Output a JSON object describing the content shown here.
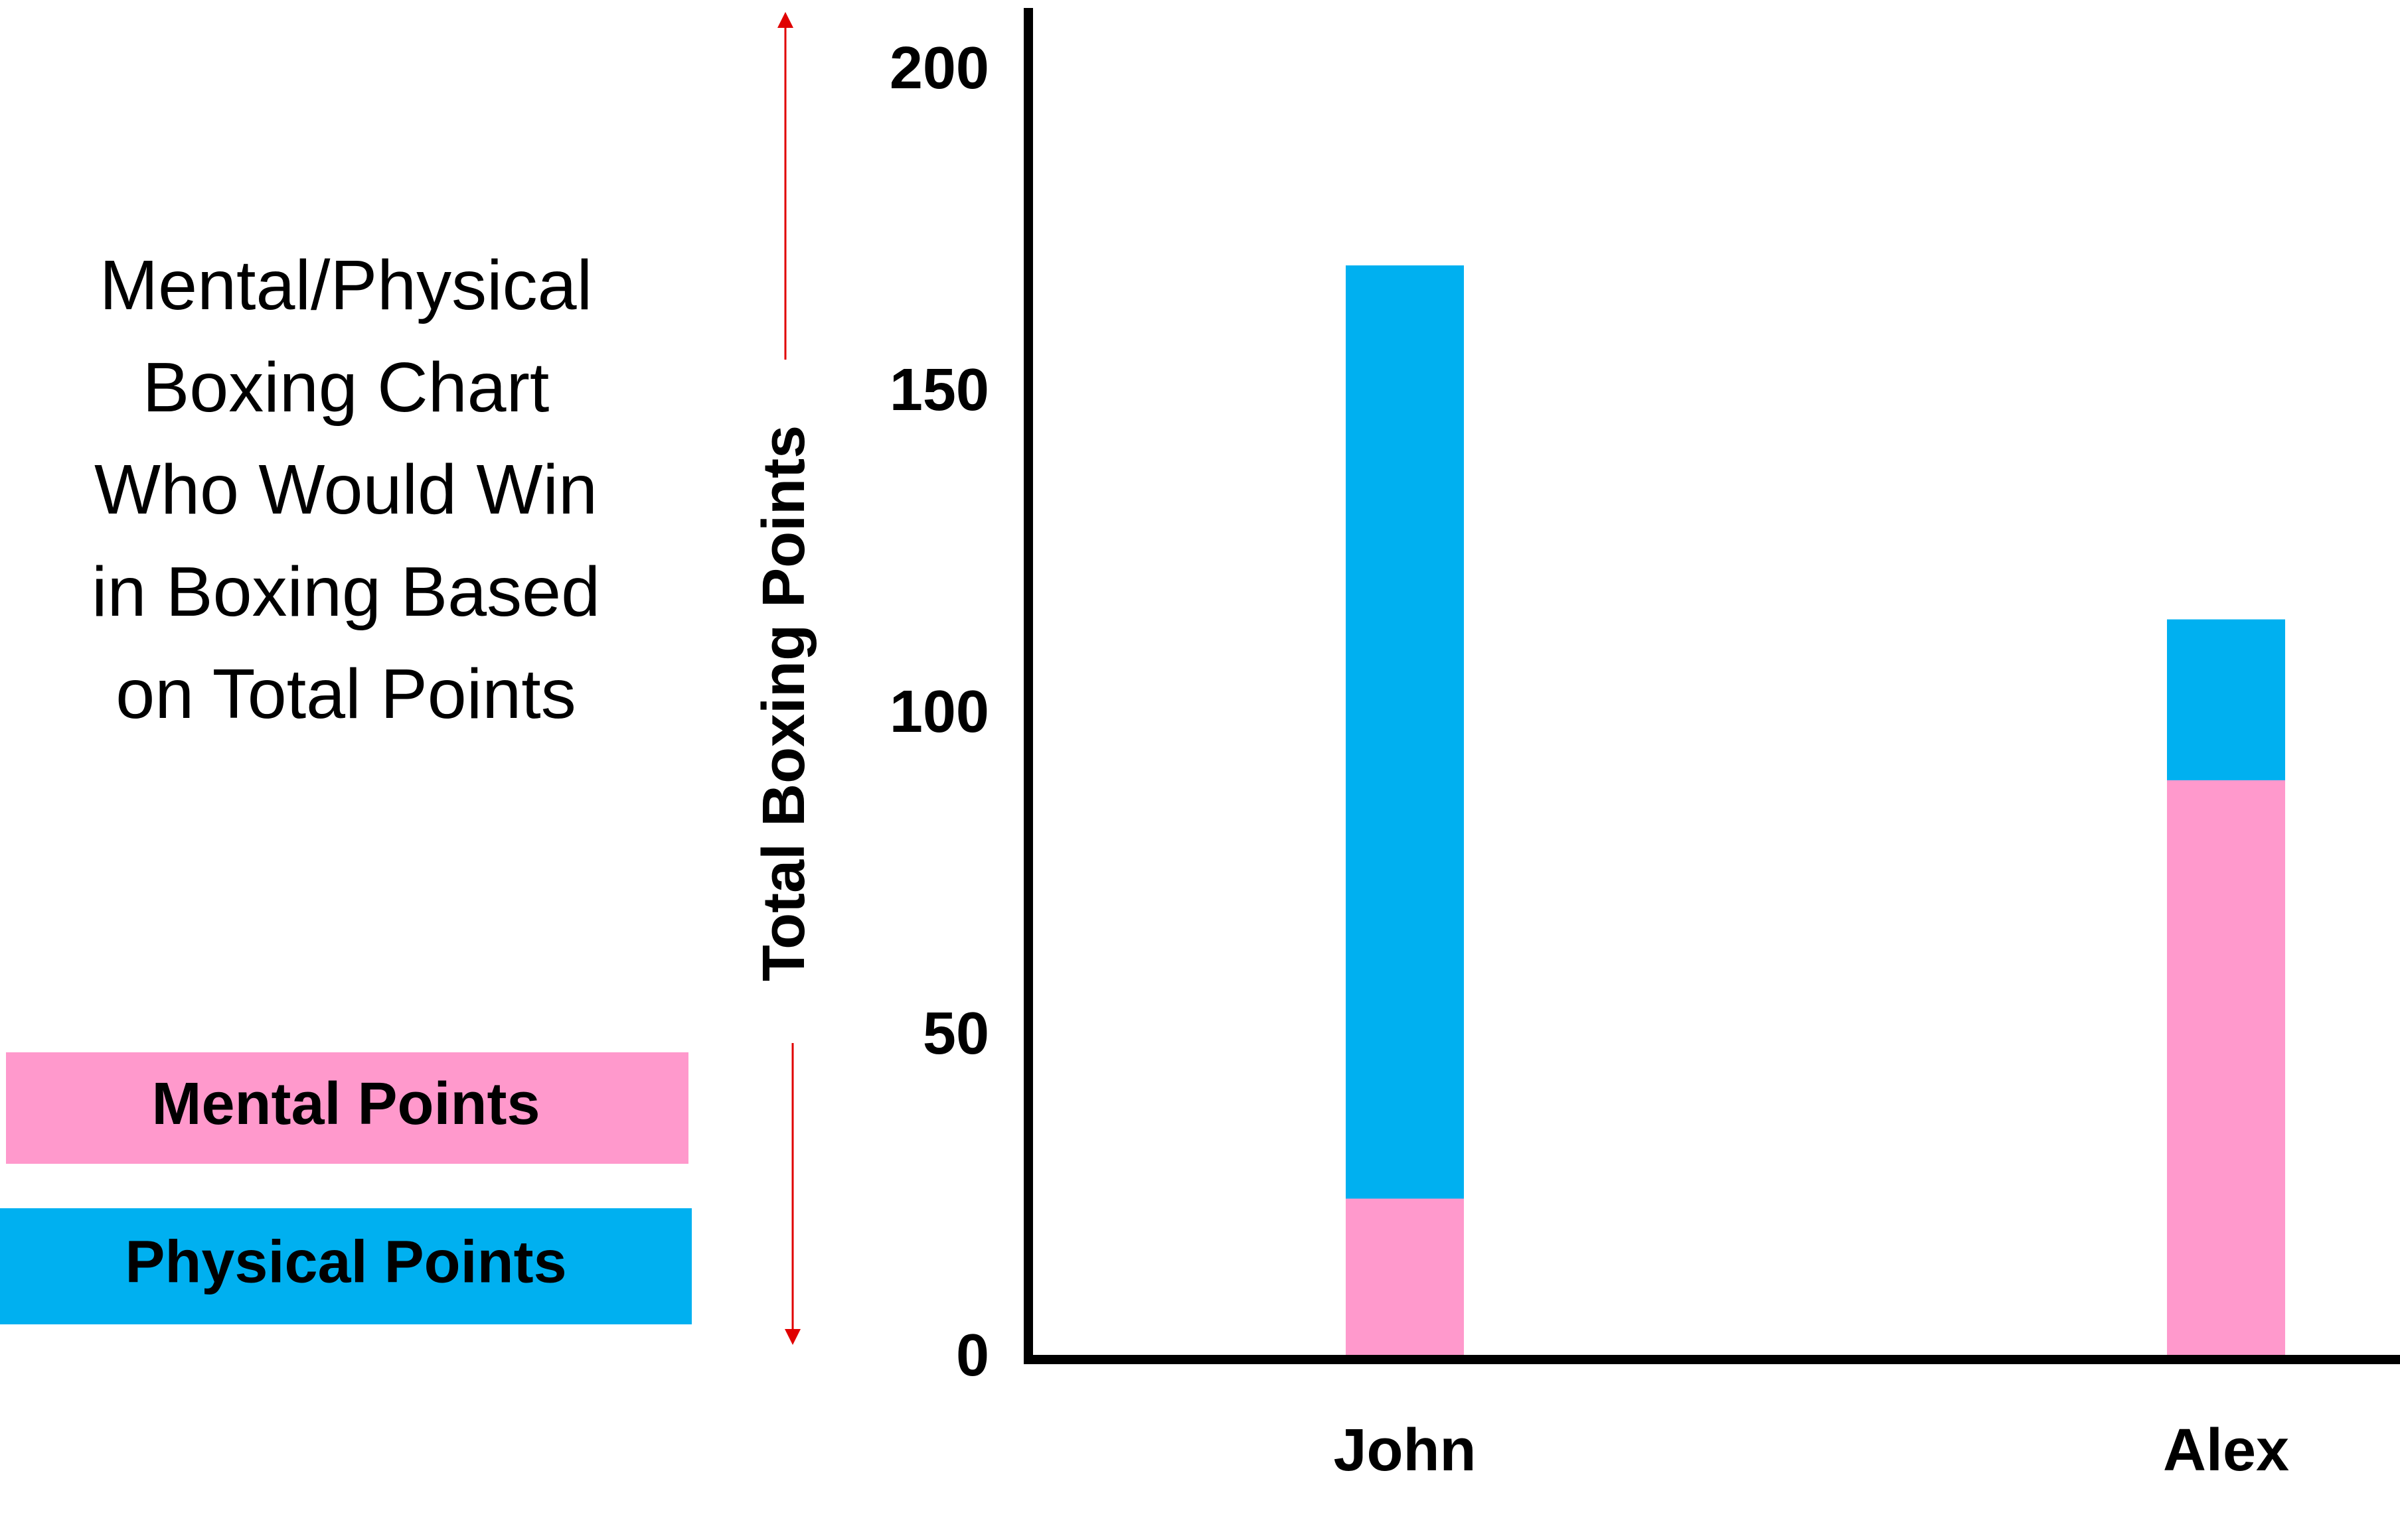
{
  "chart_data": {
    "type": "stacked_bar",
    "title_lines": [
      "Mental/Physical",
      "Boxing Chart",
      "Who Would Win",
      "in Boxing Based",
      "on Total Points"
    ],
    "y_label": "Total Boxing Points",
    "categories": [
      "John",
      "Alex"
    ],
    "series": [
      {
        "name": "Mental Points",
        "color": "#ff99cc",
        "values": [
          25,
          90
        ]
      },
      {
        "name": "Physical Points",
        "color": "#00b0f0",
        "values": [
          145,
          25
        ]
      }
    ],
    "ylim": [
      0,
      210
    ],
    "yticks": [
      0,
      50,
      100,
      150,
      200
    ]
  }
}
